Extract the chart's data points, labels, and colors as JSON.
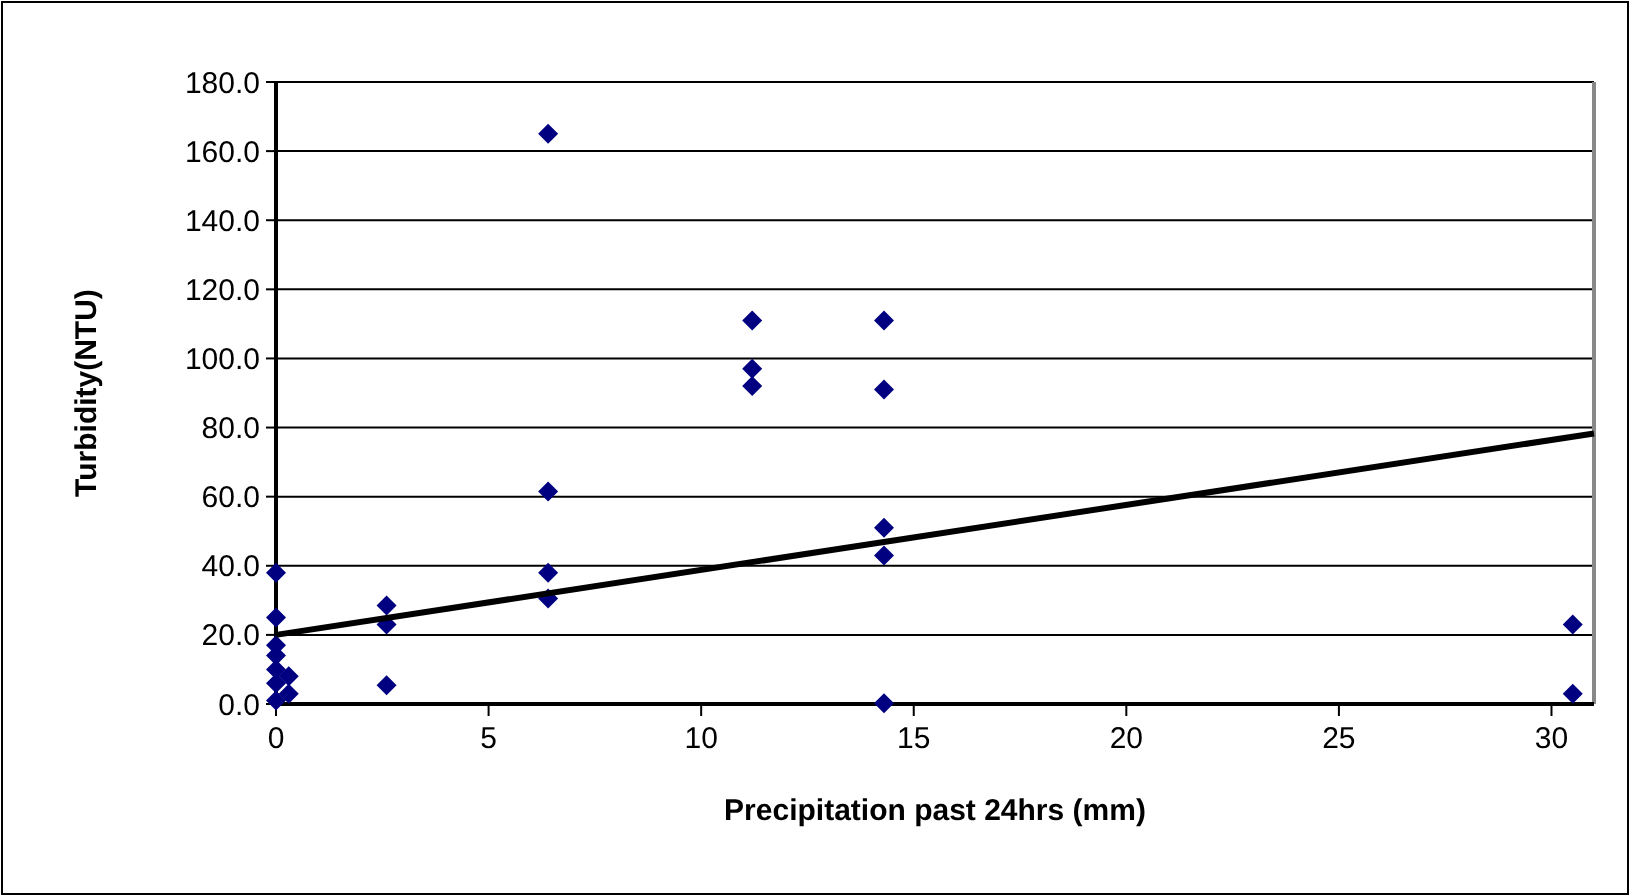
{
  "chart_data": {
    "type": "scatter",
    "xlabel": "Precipitation past 24hrs (mm)",
    "ylabel": "Turbidity(NTU)",
    "xlim": [
      0,
      31
    ],
    "xticks": [
      0,
      5,
      10,
      15,
      20,
      25,
      30
    ],
    "ylim": [
      0,
      180
    ],
    "yticks": [
      {
        "value": 0,
        "label": "0.0"
      },
      {
        "value": 20,
        "label": "20.0"
      },
      {
        "value": 40,
        "label": "40.0"
      },
      {
        "value": 60,
        "label": "60.0"
      },
      {
        "value": 80,
        "label": "80.0"
      },
      {
        "value": 100,
        "label": "100.0"
      },
      {
        "value": 120,
        "label": "120.0"
      },
      {
        "value": 140,
        "label": "140.0"
      },
      {
        "value": 160,
        "label": "160.0"
      },
      {
        "value": 180,
        "label": "180.0"
      }
    ],
    "grid": "y",
    "marker": "diamond",
    "series": [
      {
        "color": "#000080",
        "x": [
          0,
          0,
          0,
          0,
          0,
          0,
          0,
          0.3,
          0.3,
          2.6,
          2.6,
          2.6,
          6.4,
          6.4,
          6.4,
          6.4,
          11.2,
          11.2,
          11.2,
          14.3,
          14.3,
          14.3,
          14.3,
          14.3,
          30.5,
          30.5
        ],
        "values": [
          38,
          25,
          17,
          14,
          10,
          6,
          1,
          8,
          3,
          28.5,
          23,
          5.4,
          165,
          61.5,
          38,
          30.5,
          111,
          97,
          92,
          111,
          91,
          51,
          43,
          0.2,
          23,
          3
        ]
      },
      {
        "type": "line",
        "color": "#000000",
        "x": [
          0,
          31
        ],
        "values": [
          20,
          78.3
        ],
        "marker": "none",
        "line_style": "solid"
      }
    ]
  }
}
